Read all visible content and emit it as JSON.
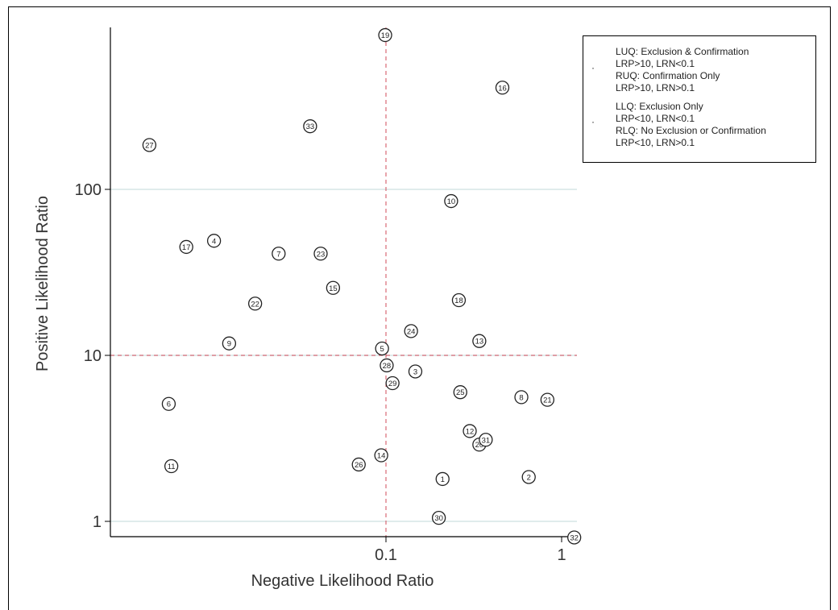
{
  "chart_data": {
    "type": "scatter",
    "title": "",
    "xlabel": "Negative Likelihood Ratio",
    "ylabel": "Positive Likelihood Ratio",
    "x_scale": "log",
    "y_scale": "log",
    "xlim": [
      0.0045,
      1.2
    ],
    "ylim": [
      0.8,
      900
    ],
    "x_ticks": [
      {
        "value": 0.1,
        "label": "0.1"
      },
      {
        "value": 1,
        "label": "1"
      }
    ],
    "y_ticks": [
      {
        "value": 1,
        "label": "1"
      },
      {
        "value": 10,
        "label": "10"
      },
      {
        "value": 100,
        "label": "100"
      }
    ],
    "reference_lines": {
      "x": 0.1,
      "y": 10,
      "style": "dashed",
      "color": "#d24b5a"
    },
    "grid": "horizontal",
    "legend_position": "top-right",
    "legend": [
      {
        "title": "LUQ: Exclusion & Confirmation",
        "rule": "LRP>10, LRN<0.1"
      },
      {
        "title": "RUQ: Confirmation Only",
        "rule": "LRP>10, LRN>0.1"
      },
      {
        "title": "LLQ: Exclusion Only",
        "rule": "LRP<10, LRN<0.1"
      },
      {
        "title": "RLQ: No Exclusion or Confirmation",
        "rule": "LRP<10, LRN>0.1"
      }
    ],
    "points": [
      {
        "label": "1",
        "x": 0.21,
        "y": 1.8
      },
      {
        "label": "2",
        "x": 0.65,
        "y": 1.85
      },
      {
        "label": "3",
        "x": 0.147,
        "y": 8.0
      },
      {
        "label": "4",
        "x": 0.0105,
        "y": 49
      },
      {
        "label": "5",
        "x": 0.095,
        "y": 11.0
      },
      {
        "label": "6",
        "x": 0.0058,
        "y": 5.1
      },
      {
        "label": "7",
        "x": 0.0245,
        "y": 41
      },
      {
        "label": "8",
        "x": 0.59,
        "y": 5.6
      },
      {
        "label": "9",
        "x": 0.0128,
        "y": 11.8
      },
      {
        "label": "10",
        "x": 0.235,
        "y": 85
      },
      {
        "label": "11",
        "x": 0.006,
        "y": 2.15
      },
      {
        "label": "12",
        "x": 0.3,
        "y": 3.5
      },
      {
        "label": "13",
        "x": 0.34,
        "y": 12.2
      },
      {
        "label": "14",
        "x": 0.094,
        "y": 2.5
      },
      {
        "label": "15",
        "x": 0.05,
        "y": 25.5
      },
      {
        "label": "16",
        "x": 0.46,
        "y": 410
      },
      {
        "label": "17",
        "x": 0.0073,
        "y": 45
      },
      {
        "label": "18",
        "x": 0.26,
        "y": 21.5
      },
      {
        "label": "19",
        "x": 0.099,
        "y": 850
      },
      {
        "label": "20",
        "x": 0.34,
        "y": 2.9
      },
      {
        "label": "21",
        "x": 0.83,
        "y": 5.4
      },
      {
        "label": "22",
        "x": 0.018,
        "y": 20.5
      },
      {
        "label": "23",
        "x": 0.0425,
        "y": 41
      },
      {
        "label": "24",
        "x": 0.139,
        "y": 14.0
      },
      {
        "label": "25",
        "x": 0.265,
        "y": 6.0
      },
      {
        "label": "26",
        "x": 0.07,
        "y": 2.2
      },
      {
        "label": "27",
        "x": 0.0045,
        "y": 185
      },
      {
        "label": "28",
        "x": 0.101,
        "y": 8.7
      },
      {
        "label": "29",
        "x": 0.109,
        "y": 6.8
      },
      {
        "label": "30",
        "x": 0.2,
        "y": 1.05
      },
      {
        "label": "31",
        "x": 0.37,
        "y": 3.1
      },
      {
        "label": "32",
        "x": 1.18,
        "y": 0.8
      },
      {
        "label": "33",
        "x": 0.037,
        "y": 240
      }
    ]
  }
}
